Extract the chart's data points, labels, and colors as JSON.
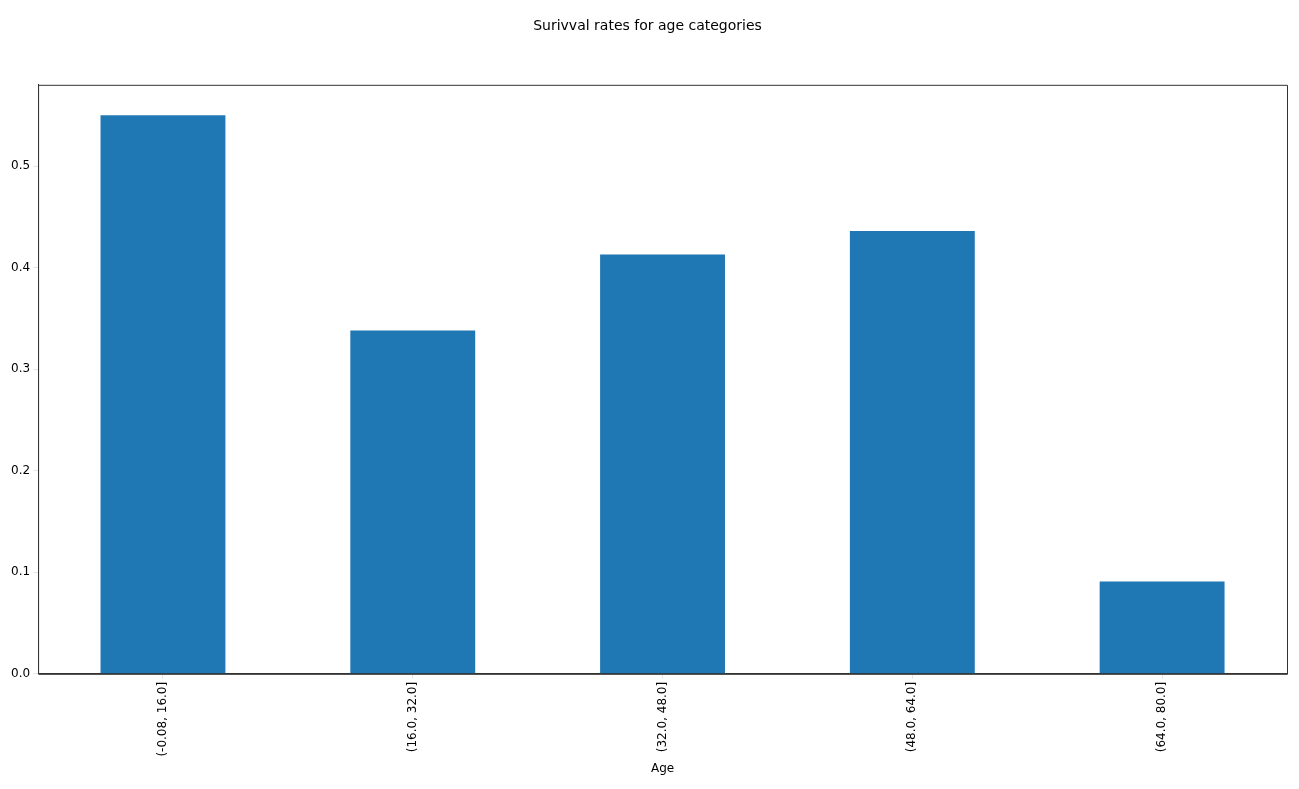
{
  "chart_data": {
    "type": "bar",
    "title": "Surivval rates for age categories",
    "xlabel": "Age",
    "categories": [
      "(-0.08, 16.0]",
      "(16.0, 32.0]",
      "(32.0, 48.0]",
      "(48.0, 64.0]",
      "(64.0, 80.0]"
    ],
    "values": [
      0.55,
      0.338,
      0.413,
      0.436,
      0.091
    ],
    "color": "#1f77b4",
    "ylim": [
      0,
      0.58
    ],
    "yticks": [
      {
        "value": 0,
        "label": "0.0"
      },
      0.1,
      0.2,
      0.3,
      0.4,
      0.5
    ],
    "grid": false,
    "legend": false
  }
}
